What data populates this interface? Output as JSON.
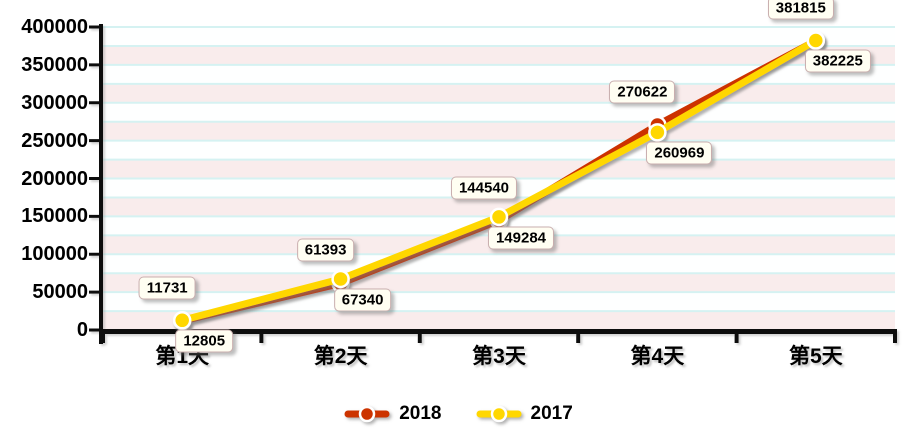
{
  "chart_data": {
    "type": "line",
    "title": "",
    "xlabel": "",
    "ylabel": "",
    "categories": [
      "第1天",
      "第2天",
      "第3天",
      "第4天",
      "第5天"
    ],
    "series": [
      {
        "name": "2018",
        "color": "#CC3300",
        "values": [
          11731,
          61393,
          144540,
          270622,
          381815
        ]
      },
      {
        "name": "2017",
        "color": "#FFD700",
        "values": [
          12805,
          67340,
          149284,
          260969,
          382225
        ]
      }
    ],
    "ylim": [
      0,
      400000
    ],
    "y_tick_step": 50000,
    "y_tick_labels": [
      "0",
      "50000",
      "100000",
      "150000",
      "200000",
      "250000",
      "300000",
      "350000",
      "400000"
    ],
    "band_step": 25000,
    "grid": "striped-bands",
    "legend_position": "bottom",
    "colors": {
      "band_pink": "#F9ECEC",
      "band_white": "#FEFFFF",
      "grid_line": "#D5F2F2",
      "axis": "#111111",
      "marker_ring": "#FFFFFF",
      "label_box_bg": "#FFFEF2",
      "label_box_border": "#C9AEAE",
      "text": "#000000"
    }
  }
}
